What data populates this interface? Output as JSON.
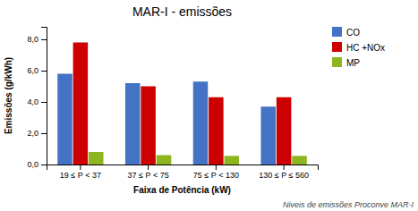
{
  "chart_data": {
    "type": "bar",
    "title": "MAR-I - emissões",
    "xlabel": "Faixa de Potência (kW)",
    "ylabel": "Emissões (g/kWh)",
    "annotation": "Niveis de emissões Proconve MAR-I",
    "categories": [
      "19 ≤ P < 37",
      "37 ≤ P < 75",
      "75 ≤ P < 130",
      "130 ≤ P ≤ 560"
    ],
    "series": [
      {
        "name": "CO",
        "color": "#4472C4",
        "values": [
          5.8,
          5.2,
          5.3,
          3.7
        ]
      },
      {
        "name": "HC +NOx",
        "color": "#CC0000",
        "values": [
          7.8,
          5.0,
          4.3,
          4.3
        ]
      },
      {
        "name": "MP",
        "color": "#8DB520",
        "values": [
          0.8,
          0.6,
          0.55,
          0.55
        ]
      }
    ],
    "ylim": [
      0,
      8.8
    ],
    "yticks": [
      {
        "value": 0.0,
        "label": "0,0"
      },
      {
        "value": 2.0,
        "label": "2,0"
      },
      {
        "value": 4.0,
        "label": "4,0"
      },
      {
        "value": 6.0,
        "label": "6,0"
      },
      {
        "value": 8.0,
        "label": "8,0"
      }
    ],
    "grid": false,
    "legend": "right"
  }
}
